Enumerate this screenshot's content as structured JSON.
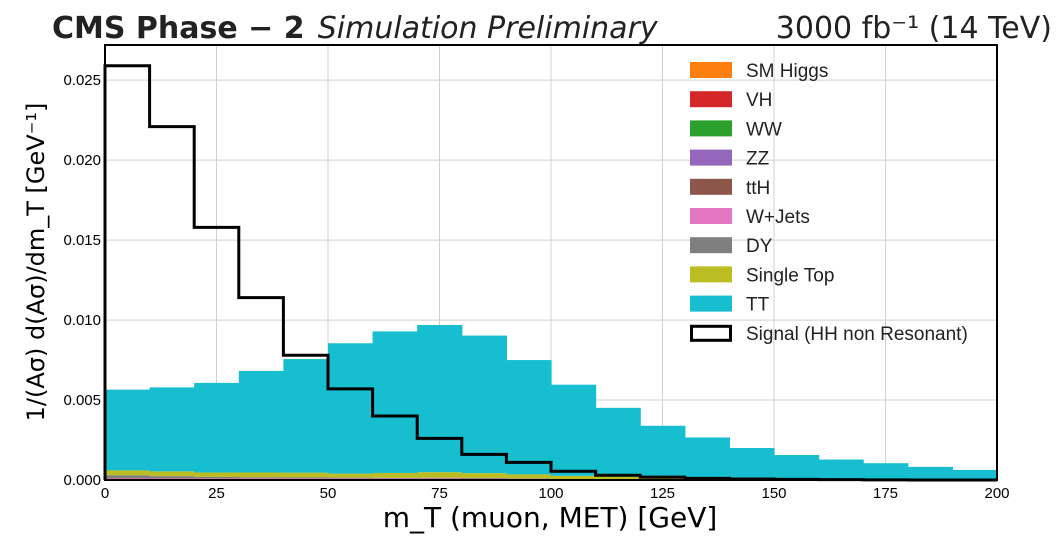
{
  "chart_data": {
    "type": "bar",
    "title_left_bold": "CMS Phase − 2",
    "title_left_italic": "Simulation Preliminary",
    "title_right": "3000 fb⁻¹ (14 TeV)",
    "xlabel": "m_T (muon, MET) [GeV]",
    "ylabel": "1/(Aσ) d(Aσ)/dm_T [GeV⁻¹]",
    "xlim": [
      0,
      200
    ],
    "ylim": [
      0,
      0.0272
    ],
    "xticks": [
      0,
      25,
      50,
      75,
      100,
      125,
      150,
      175,
      200
    ],
    "xtick_labels": [
      "0",
      "25",
      "50",
      "75",
      "100",
      "125",
      "150",
      "175",
      "200"
    ],
    "yticks": [
      0,
      0.005,
      0.01,
      0.015,
      0.02,
      0.025
    ],
    "ytick_labels": [
      "0.000",
      "0.005",
      "0.010",
      "0.015",
      "0.020",
      "0.025"
    ],
    "grid": true,
    "legend_position": "top-right",
    "bin_edges": [
      0,
      10,
      20,
      30,
      40,
      50,
      60,
      70,
      80,
      90,
      100,
      110,
      120,
      130,
      140,
      150,
      160,
      170,
      180,
      190,
      200
    ],
    "stacked_series": [
      {
        "name": "SM Higgs",
        "color": "#ff7f0e",
        "values": [
          2e-05,
          2e-05,
          2e-05,
          2e-05,
          2e-05,
          2e-05,
          2e-05,
          2e-05,
          2e-05,
          2e-05,
          1e-05,
          1e-05,
          1e-05,
          1e-05,
          0,
          0,
          0,
          0,
          0,
          0
        ]
      },
      {
        "name": "VH",
        "color": "#d62728",
        "values": [
          1e-05,
          1e-05,
          1e-05,
          1e-05,
          1e-05,
          1e-05,
          1e-05,
          1e-05,
          1e-05,
          1e-05,
          0,
          0,
          0,
          0,
          0,
          0,
          0,
          0,
          0,
          0
        ]
      },
      {
        "name": "WW",
        "color": "#2ca02c",
        "values": [
          3e-05,
          3e-05,
          3e-05,
          3e-05,
          3e-05,
          3e-05,
          3e-05,
          3e-05,
          3e-05,
          2e-05,
          2e-05,
          2e-05,
          1e-05,
          1e-05,
          1e-05,
          1e-05,
          1e-05,
          0,
          0,
          0
        ]
      },
      {
        "name": "ZZ",
        "color": "#9467bd",
        "values": [
          1e-05,
          1e-05,
          1e-05,
          1e-05,
          1e-05,
          1e-05,
          1e-05,
          1e-05,
          1e-05,
          0,
          0,
          0,
          0,
          0,
          0,
          0,
          0,
          0,
          0,
          0
        ]
      },
      {
        "name": "ttH",
        "color": "#8c564b",
        "values": [
          2e-05,
          2e-05,
          2e-05,
          2e-05,
          2e-05,
          2e-05,
          2e-05,
          2e-05,
          2e-05,
          2e-05,
          1e-05,
          1e-05,
          1e-05,
          1e-05,
          1e-05,
          0,
          0,
          0,
          0,
          0
        ]
      },
      {
        "name": "W+Jets",
        "color": "#e377c2",
        "values": [
          3e-05,
          3e-05,
          2e-05,
          2e-05,
          2e-05,
          2e-05,
          2e-05,
          2e-05,
          2e-05,
          1e-05,
          1e-05,
          1e-05,
          0,
          0,
          0,
          0,
          0,
          0,
          0,
          0
        ]
      },
      {
        "name": "DY",
        "color": "#7f7f7f",
        "values": [
          0.00018,
          0.00012,
          8e-05,
          6e-05,
          5e-05,
          4e-05,
          3e-05,
          3e-05,
          2e-05,
          2e-05,
          1e-05,
          1e-05,
          1e-05,
          0,
          0,
          0,
          0,
          0,
          0,
          0
        ]
      },
      {
        "name": "Single Top",
        "color": "#bcbd22",
        "values": [
          0.0003,
          0.0003,
          0.00028,
          0.0003,
          0.0003,
          0.00025,
          0.0003,
          0.00035,
          0.0003,
          0.00025,
          0.0002,
          0.00015,
          0.00012,
          0.0001,
          8e-05,
          7e-05,
          6e-05,
          5e-05,
          4e-05,
          3e-05
        ]
      },
      {
        "name": "TT",
        "color": "#17becf",
        "values": [
          0.00505,
          0.00525,
          0.0056,
          0.00635,
          0.0071,
          0.00815,
          0.00885,
          0.0092,
          0.0086,
          0.00715,
          0.0057,
          0.0043,
          0.00323,
          0.00253,
          0.0019,
          0.00148,
          0.00121,
          0.001,
          0.00078,
          0.0006
        ]
      }
    ],
    "signal": {
      "name": "Signal (HH non Resonant)",
      "color": "#000000",
      "values": [
        0.0259,
        0.0221,
        0.0158,
        0.0114,
        0.0078,
        0.0057,
        0.004,
        0.0026,
        0.0016,
        0.0011,
        0.00055,
        0.0003,
        0.00018,
        0.0001,
        6e-05,
        4e-05,
        2e-05,
        1e-05,
        0,
        0
      ]
    }
  }
}
